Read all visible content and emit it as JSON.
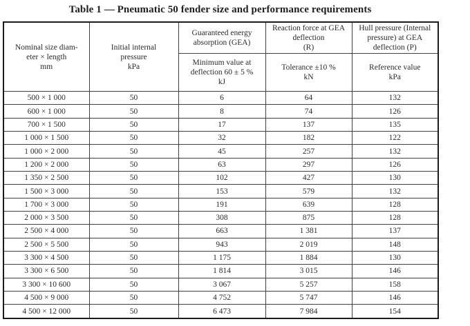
{
  "document": {
    "title": "Table 1 — Pneumatic 50 fender size and performance requirements"
  },
  "table": {
    "header": {
      "nominal_size": "Nominal size diam-\neter × length\nmm",
      "initial_pressure": "Initial internal\npressure\nkPa",
      "gea_group": "Guaranteed energy\nabsorption (GEA)",
      "gea_sub": "Minimum value at\ndeflection 60 ± 5 %\nkJ",
      "reaction_group": "Reaction force at GEA\ndeflection\n(R)",
      "reaction_sub": "Tolerance ±10 %\nkN",
      "hull_group": "Hull pressure (Internal\npressure) at GEA\ndeflection (P)",
      "hull_sub": "Reference value\nkPa"
    },
    "rows": [
      [
        "500 × 1 000",
        "50",
        "6",
        "64",
        "132"
      ],
      [
        "600 × 1 000",
        "50",
        "8",
        "74",
        "126"
      ],
      [
        "700 × 1 500",
        "50",
        "17",
        "137",
        "135"
      ],
      [
        "1 000 × 1 500",
        "50",
        "32",
        "182",
        "122"
      ],
      [
        "1 000 × 2 000",
        "50",
        "45",
        "257",
        "132"
      ],
      [
        "1 200 × 2 000",
        "50",
        "63",
        "297",
        "126"
      ],
      [
        "1 350 × 2 500",
        "50",
        "102",
        "427",
        "130"
      ],
      [
        "1 500 × 3 000",
        "50",
        "153",
        "579",
        "132"
      ],
      [
        "1 700 × 3 000",
        "50",
        "191",
        "639",
        "128"
      ],
      [
        "2 000 × 3 500",
        "50",
        "308",
        "875",
        "128"
      ],
      [
        "2 500 × 4 000",
        "50",
        "663",
        "1 381",
        "137"
      ],
      [
        "2 500 × 5 500",
        "50",
        "943",
        "2 019",
        "148"
      ],
      [
        "3 300 × 4 500",
        "50",
        "1 175",
        "1 884",
        "130"
      ],
      [
        "3 300 × 6 500",
        "50",
        "1 814",
        "3 015",
        "146"
      ],
      [
        "3 300 × 10 600",
        "50",
        "3 067",
        "5 257",
        "158"
      ],
      [
        "4 500 × 9 000",
        "50",
        "4 752",
        "5 747",
        "146"
      ],
      [
        "4 500 × 12 000",
        "50",
        "6 473",
        "7 984",
        "154"
      ]
    ]
  }
}
